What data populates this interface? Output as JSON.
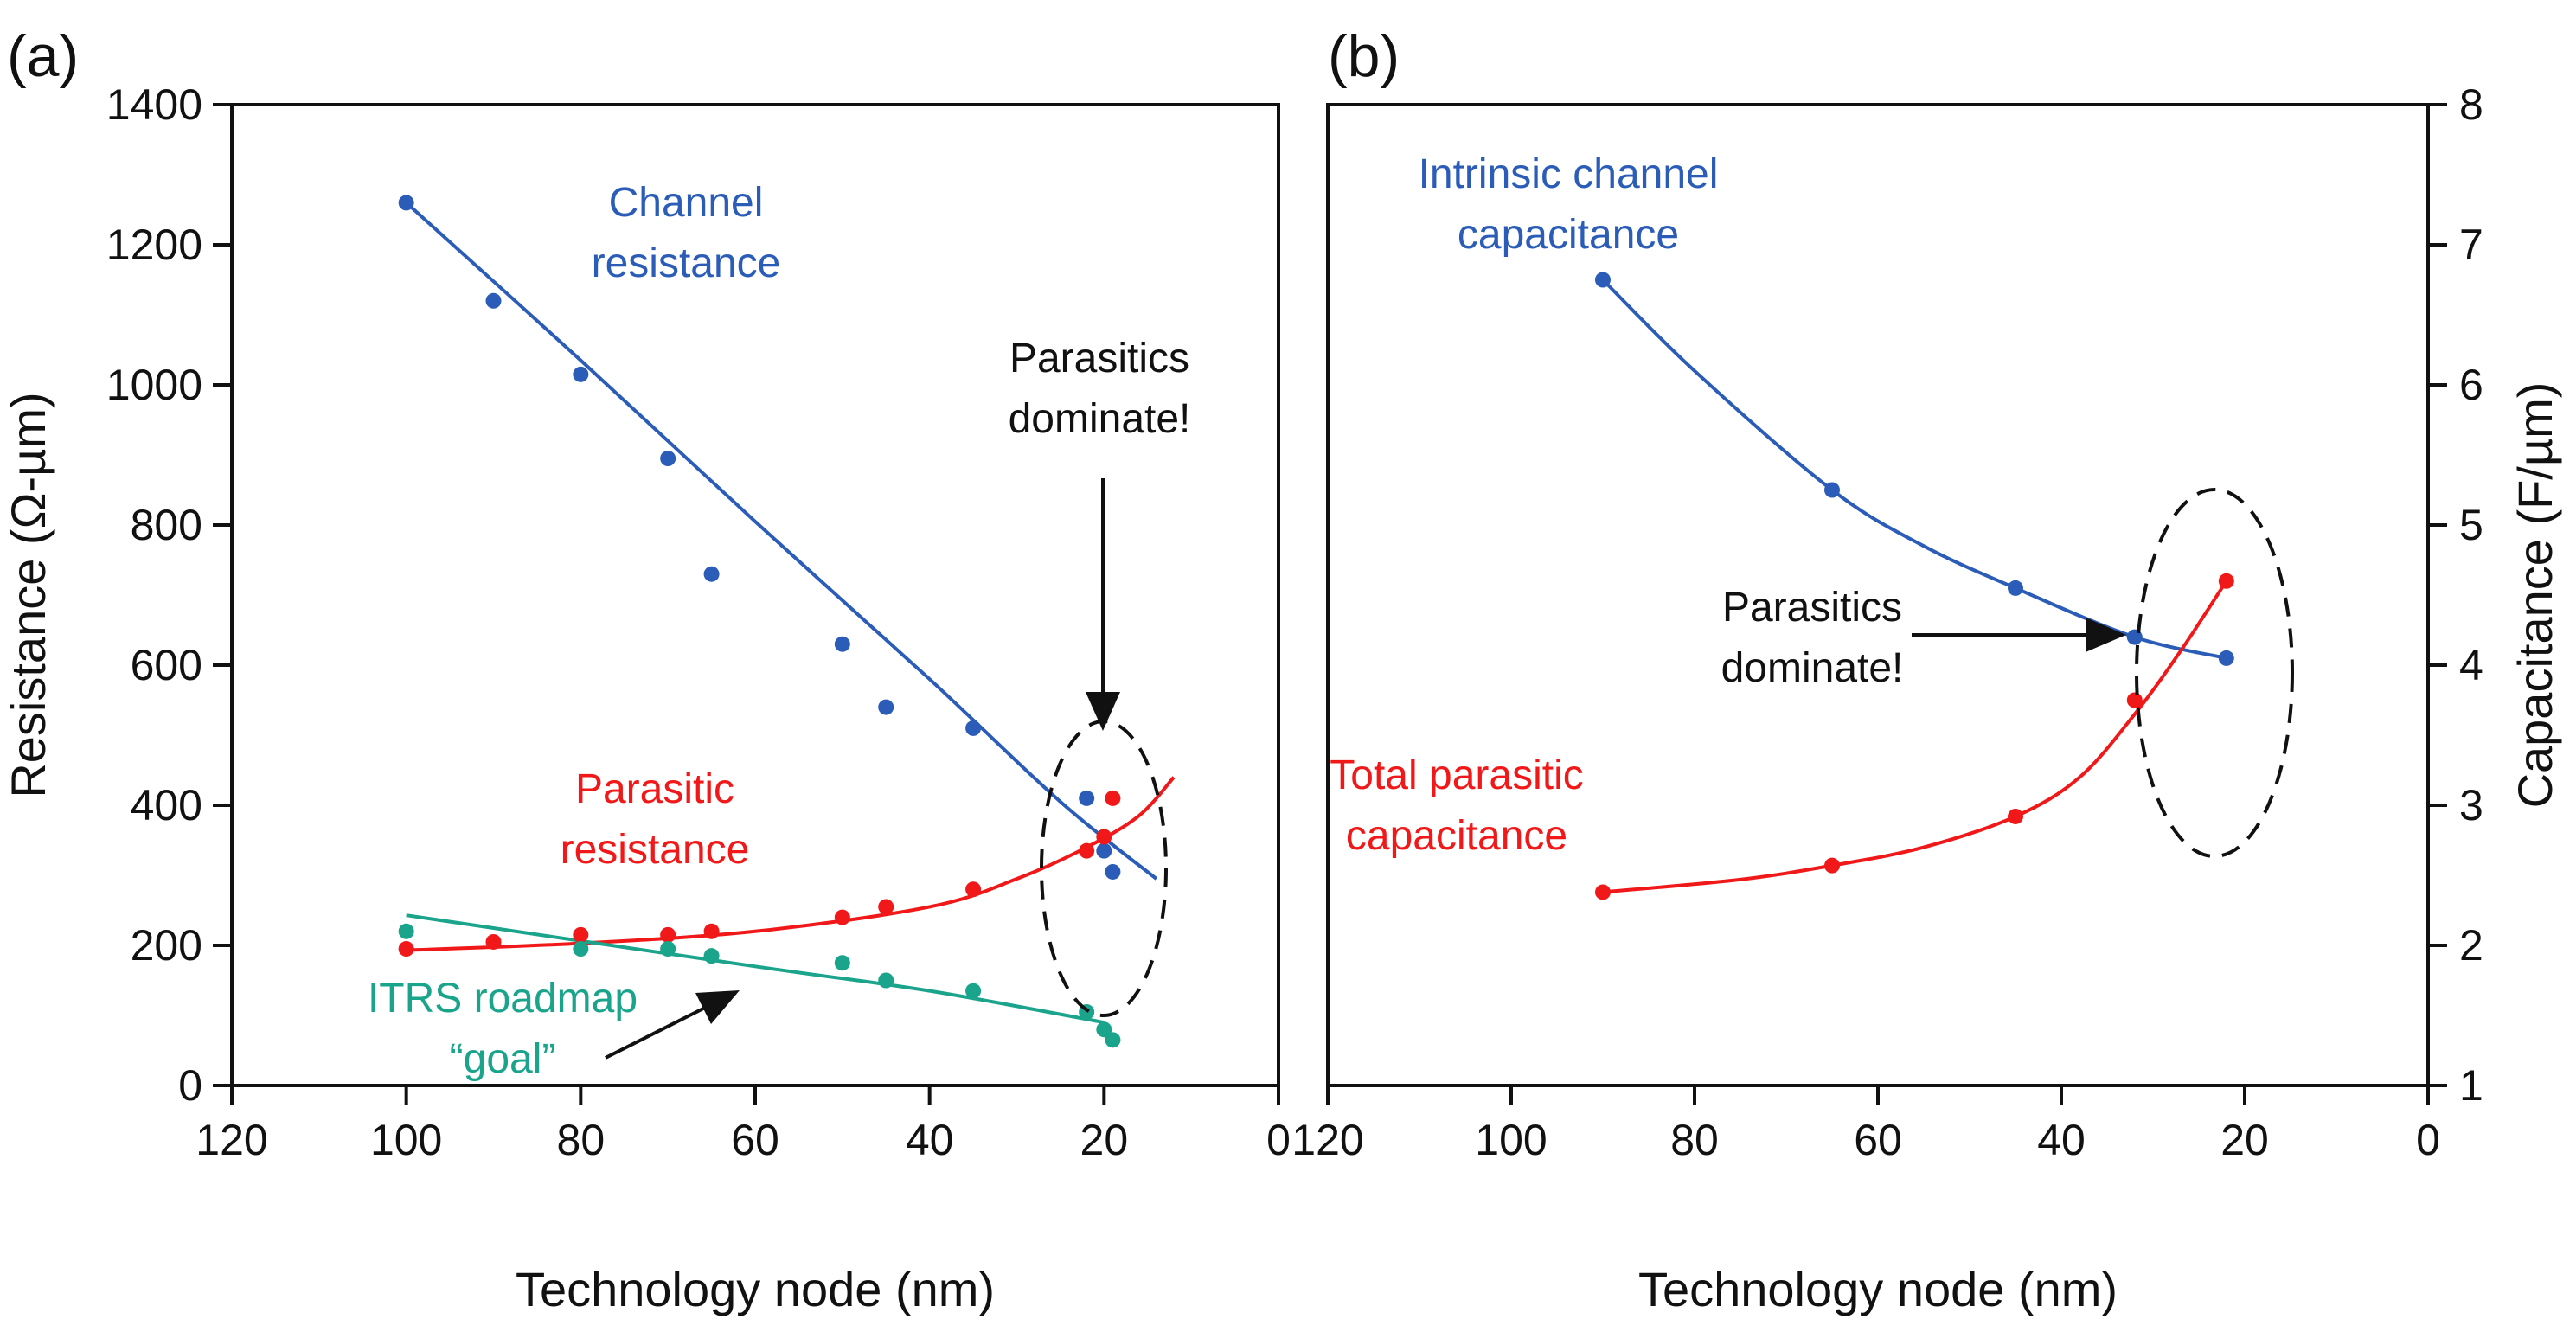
{
  "chart_data": [
    {
      "panel": "(a)",
      "type": "scatter",
      "xlabel": "Technology node (nm)",
      "ylabel": "Resistance (Ω-µm)",
      "xlim": [
        120,
        0
      ],
      "ylim": [
        0,
        1400
      ],
      "xticks": [
        "120",
        "100",
        "80",
        "60",
        "40",
        "20",
        "0"
      ],
      "yticks": [
        "0",
        "200",
        "400",
        "600",
        "800",
        "1000",
        "1200",
        "1400"
      ],
      "series": [
        {
          "name": "Channel resistance",
          "color": "#2a5cb8",
          "label_lines": [
            "Channel",
            "resistance"
          ],
          "points": [
            [
              100,
              1260
            ],
            [
              90,
              1120
            ],
            [
              80,
              1015
            ],
            [
              70,
              895
            ],
            [
              65,
              730
            ],
            [
              50,
              630
            ],
            [
              45,
              540
            ],
            [
              35,
              510
            ],
            [
              22,
              410
            ],
            [
              20,
              335
            ],
            [
              19,
              305
            ]
          ],
          "fit": [
            [
              100,
              1260
            ],
            [
              80,
              1035
            ],
            [
              60,
              805
            ],
            [
              40,
              580
            ],
            [
              25,
              405
            ],
            [
              14,
              295
            ]
          ]
        },
        {
          "name": "Parasitic resistance",
          "color": "#f01818",
          "label_lines": [
            "Parasitic",
            "resistance"
          ],
          "points": [
            [
              100,
              195
            ],
            [
              90,
              205
            ],
            [
              80,
              215
            ],
            [
              70,
              215
            ],
            [
              65,
              220
            ],
            [
              50,
              240
            ],
            [
              45,
              255
            ],
            [
              35,
              280
            ],
            [
              22,
              335
            ],
            [
              20,
              355
            ],
            [
              19,
              410
            ]
          ],
          "fit": [
            [
              100,
              193
            ],
            [
              80,
              203
            ],
            [
              60,
              220
            ],
            [
              40,
              255
            ],
            [
              30,
              295
            ],
            [
              22,
              340
            ],
            [
              16,
              385
            ],
            [
              12,
              440
            ]
          ]
        },
        {
          "name": "ITRS roadmap goal",
          "color": "#1aa48c",
          "label_lines": [
            "ITRS roadmap",
            "“goal”"
          ],
          "points": [
            [
              100,
              220
            ],
            [
              80,
              195
            ],
            [
              70,
              195
            ],
            [
              65,
              185
            ],
            [
              50,
              175
            ],
            [
              45,
              150
            ],
            [
              35,
              135
            ],
            [
              22,
              105
            ],
            [
              20,
              80
            ],
            [
              19,
              65
            ]
          ],
          "fit": [
            [
              100,
              243
            ],
            [
              60,
              170
            ],
            [
              40,
              135
            ],
            [
              20,
              90
            ]
          ]
        }
      ],
      "annotations": [
        {
          "text_lines": [
            "Parasitics",
            "dominate!"
          ]
        }
      ]
    },
    {
      "panel": "(b)",
      "type": "line",
      "xlabel": "Technology node (nm)",
      "ylabel": "Capacitance (F/µm)",
      "y_axis_side": "right",
      "xlim": [
        120,
        0
      ],
      "ylim": [
        1,
        8
      ],
      "xticks": [
        "120",
        "100",
        "80",
        "60",
        "40",
        "20",
        "0"
      ],
      "yticks": [
        "1",
        "2",
        "3",
        "4",
        "5",
        "6",
        "7",
        "8"
      ],
      "series": [
        {
          "name": "Intrinsic channel capacitance",
          "color": "#2a5cb8",
          "label_lines": [
            "Intrinsic channel",
            "capacitance"
          ],
          "points": [
            [
              90,
              6.75
            ],
            [
              65,
              5.25
            ],
            [
              45,
              4.55
            ],
            [
              32,
              4.2
            ],
            [
              22,
              4.05
            ]
          ],
          "fit": [
            [
              90,
              6.75
            ],
            [
              80,
              6.1
            ],
            [
              65,
              5.25
            ],
            [
              55,
              4.85
            ],
            [
              45,
              4.55
            ],
            [
              32,
              4.2
            ],
            [
              22,
              4.05
            ]
          ]
        },
        {
          "name": "Total parasitic capacitance",
          "color": "#f01818",
          "label_lines": [
            "Total parasitic",
            "capacitance"
          ],
          "points": [
            [
              90,
              2.38
            ],
            [
              65,
              2.57
            ],
            [
              45,
              2.92
            ],
            [
              32,
              3.75
            ],
            [
              22,
              4.6
            ]
          ],
          "fit": [
            [
              90,
              2.38
            ],
            [
              75,
              2.47
            ],
            [
              65,
              2.57
            ],
            [
              55,
              2.7
            ],
            [
              45,
              2.92
            ],
            [
              38,
              3.2
            ],
            [
              32,
              3.65
            ],
            [
              27,
              4.1
            ],
            [
              22,
              4.6
            ]
          ]
        }
      ],
      "annotations": [
        {
          "text_lines": [
            "Parasitics",
            "dominate!"
          ]
        }
      ]
    }
  ]
}
